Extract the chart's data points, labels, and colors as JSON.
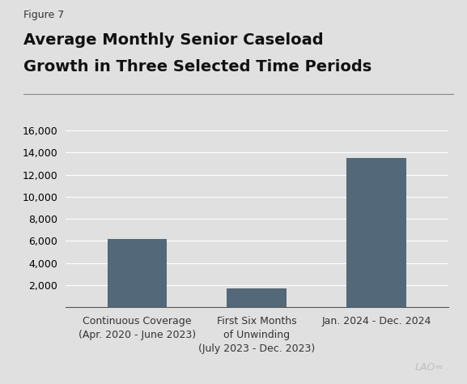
{
  "figure_label": "Figure 7",
  "title_line1": "Average Monthly Senior Caseload",
  "title_line2": "Growth in Three Selected Time Periods",
  "categories": [
    "Continuous Coverage\n(Apr. 2020 - June 2023)",
    "First Six Months\nof Unwinding\n(July 2023 - Dec. 2023)",
    "Jan. 2024 - Dec. 2024"
  ],
  "values": [
    6150,
    1700,
    13500
  ],
  "bar_color": "#536878",
  "background_color": "#e0e0e0",
  "plot_bg_color": "#e0e0e0",
  "ylim": [
    0,
    16000
  ],
  "yticks": [
    2000,
    4000,
    6000,
    8000,
    10000,
    12000,
    14000,
    16000
  ],
  "grid_color": "#ffffff",
  "tick_label_fontsize": 9,
  "title_fontsize": 14,
  "figure_label_fontsize": 9,
  "lao_watermark": "LAO≈",
  "bar_width": 0.5
}
